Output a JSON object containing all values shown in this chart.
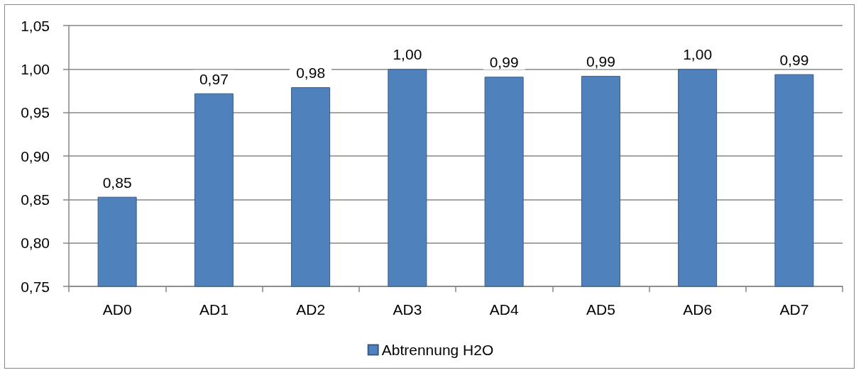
{
  "chart_data": {
    "type": "bar",
    "categories": [
      "AD0",
      "AD1",
      "AD2",
      "AD3",
      "AD4",
      "AD5",
      "AD6",
      "AD7"
    ],
    "series": [
      {
        "name": "Abtrennung H2O",
        "color": "#4f81bd",
        "values": [
          0.853,
          0.972,
          0.979,
          1.0,
          0.991,
          0.992,
          1.0,
          0.994
        ],
        "value_labels": [
          "0,85",
          "0,97",
          "0,98",
          "1,00",
          "0,99",
          "0,99",
          "1,00",
          "0,99"
        ]
      }
    ],
    "ylim": [
      0.75,
      1.05
    ],
    "yticks": [
      {
        "value": 0.75,
        "label": "0,75"
      },
      {
        "value": 0.8,
        "label": "0,80"
      },
      {
        "value": 0.85,
        "label": "0,85"
      },
      {
        "value": 0.9,
        "label": "0,90"
      },
      {
        "value": 0.95,
        "label": "0,95"
      },
      {
        "value": 1.0,
        "label": "1,00"
      },
      {
        "value": 1.05,
        "label": "1,05"
      }
    ],
    "grid": "y",
    "legend": "bottom"
  }
}
